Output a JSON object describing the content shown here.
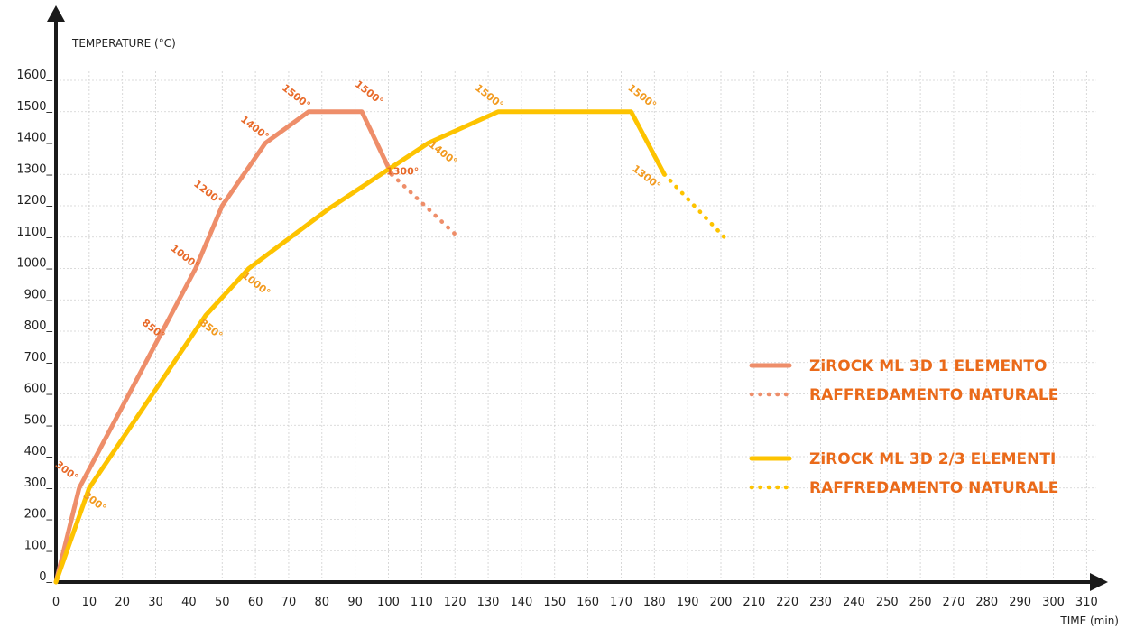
{
  "chart_data": {
    "type": "line",
    "xlabel": "TIME (min)",
    "ylabel": "TEMPERATURE (°C)",
    "xlim": [
      0,
      310
    ],
    "ylim": [
      0,
      1600
    ],
    "xticks": [
      "0",
      "10",
      "20",
      "30",
      "40",
      "50",
      "60",
      "70",
      "80",
      "90",
      "100",
      "110",
      "120",
      "130",
      "140",
      "150",
      "160",
      "170",
      "180",
      "190",
      "200",
      "210",
      "220",
      "230",
      "240",
      "250",
      "260",
      "270",
      "280",
      "290",
      "300",
      "310"
    ],
    "yticks": [
      "0_",
      "100_",
      "200_",
      "300_",
      "400_",
      "500_",
      "600_",
      "700_",
      "800_",
      "900_",
      "1000_",
      "1100_",
      "1200_",
      "1300_",
      "1400_",
      "1500_",
      "1600_"
    ],
    "grid": true,
    "series": [
      {
        "name": "ZiROCK ML 3D 1 ELEMENTO",
        "color": "#ee8e6a",
        "style": "solid",
        "points": [
          [
            0,
            0
          ],
          [
            7,
            300
          ],
          [
            42,
            1000
          ],
          [
            50,
            1200
          ],
          [
            63,
            1400
          ],
          [
            76,
            1500
          ],
          [
            92,
            1500
          ],
          [
            101,
            1300
          ]
        ],
        "labels": [
          {
            "x": 7,
            "y": 300,
            "text": "300°",
            "color": "#e86a2a"
          },
          {
            "x": 32,
            "y": 850,
            "text": "850°",
            "color": "#e86a2a"
          },
          {
            "x": 42,
            "y": 1000,
            "text": "1000°",
            "color": "#e86a2a"
          },
          {
            "x": 50,
            "y": 1200,
            "text": "1200°",
            "color": "#e86a2a"
          },
          {
            "x": 63,
            "y": 1400,
            "text": "1400°",
            "color": "#e86a2a"
          },
          {
            "x": 76,
            "y": 1500,
            "text": "1500°",
            "color": "#e86a2a"
          },
          {
            "x": 92,
            "y": 1500,
            "text": "1500°",
            "color": "#e86a2a"
          },
          {
            "x": 101,
            "y": 1300,
            "text": "1300°",
            "color": "#e86a2a"
          }
        ]
      },
      {
        "name": "RAFFREDAMENTO NATURALE",
        "color": "#ee8e6a",
        "style": "dotted",
        "points": [
          [
            101,
            1300
          ],
          [
            121,
            1100
          ]
        ],
        "labels": []
      },
      {
        "name": "ZiROCK ML 3D 2/3 ELEMENTI",
        "color": "#fdc300",
        "style": "solid",
        "points": [
          [
            0,
            0
          ],
          [
            10,
            300
          ],
          [
            45,
            850
          ],
          [
            58,
            1000
          ],
          [
            82,
            1190
          ],
          [
            112,
            1400
          ],
          [
            133,
            1500
          ],
          [
            173,
            1500
          ],
          [
            183,
            1300
          ]
        ],
        "labels": [
          {
            "x": 10,
            "y": 300,
            "text": "300°",
            "color": "#f29a1f"
          },
          {
            "x": 45,
            "y": 850,
            "text": "850°",
            "color": "#f29a1f"
          },
          {
            "x": 58,
            "y": 1000,
            "text": "1000°",
            "color": "#f29a1f"
          },
          {
            "x": 112,
            "y": 1400,
            "text": "1400°",
            "color": "#f29a1f"
          },
          {
            "x": 133,
            "y": 1500,
            "text": "1500°",
            "color": "#f29a1f"
          },
          {
            "x": 173,
            "y": 1500,
            "text": "1500°",
            "color": "#f29a1f"
          },
          {
            "x": 183,
            "y": 1300,
            "text": "1300°",
            "color": "#f29a1f"
          }
        ]
      },
      {
        "name": "RAFFREDAMENTO NATURALE",
        "color": "#fdc300",
        "style": "dotted",
        "points": [
          [
            183,
            1300
          ],
          [
            201,
            1100
          ]
        ],
        "labels": []
      }
    ],
    "legend_position": "right"
  }
}
